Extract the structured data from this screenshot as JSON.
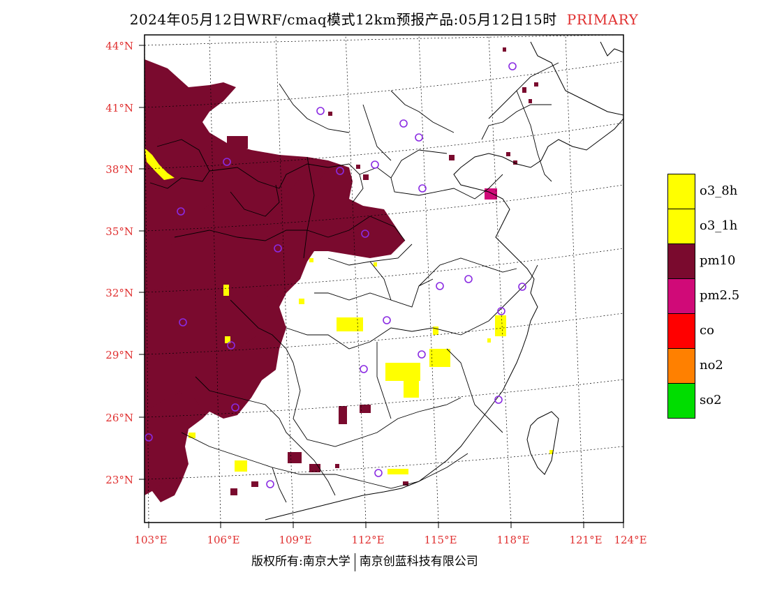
{
  "title": {
    "main": "2024年05月12日WRF/cmaq模式12km预报产品:05月12日15时",
    "tag": "PRIMARY"
  },
  "axes": {
    "lat_labels": [
      "44°N",
      "41°N",
      "38°N",
      "35°N",
      "32°N",
      "29°N",
      "26°N",
      "23°N"
    ],
    "lon_labels": [
      "103°E",
      "106°E",
      "109°E",
      "112°E",
      "115°E",
      "118°E",
      "121°E",
      "124°E"
    ]
  },
  "legend": [
    {
      "label": "o3_8h",
      "color": "#ffff00"
    },
    {
      "label": "o3_1h",
      "color": "#ffff00"
    },
    {
      "label": "pm10",
      "color": "#7a0a2e"
    },
    {
      "label": "pm2.5",
      "color": "#d00a78"
    },
    {
      "label": "co",
      "color": "#ff0000"
    },
    {
      "label": "no2",
      "color": "#ff8000"
    },
    {
      "label": "so2",
      "color": "#00dd00"
    }
  ],
  "footer": {
    "left": "版权所有:南京大学",
    "right": "南京创蓝科技有限公司"
  },
  "colors": {
    "pm10": "#7a0a2e",
    "pm25": "#d00a78",
    "o3": "#ffff00",
    "station": "#8a2be2",
    "axis_label": "#e03030"
  }
}
